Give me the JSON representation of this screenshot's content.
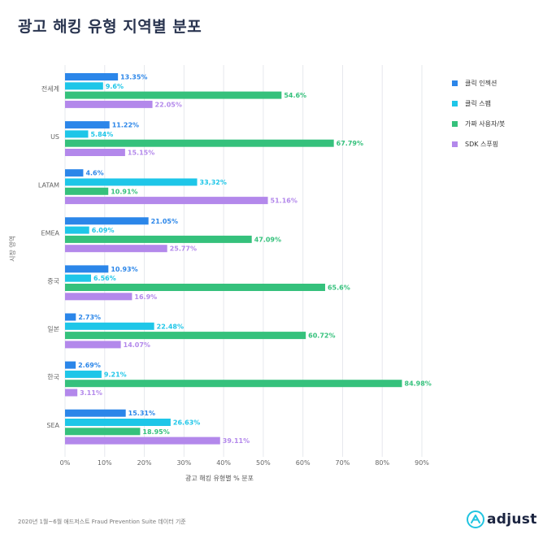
{
  "title": "광고 해킹 유형 지역별 분포",
  "footer": "2020년 1월~6월 애드저스트 Fraud Prevention Suite 데이터 기준",
  "logo_text": "adjust",
  "chart_data": {
    "type": "bar",
    "orientation": "horizontal",
    "title": "광고 해킹 유형 지역별 분포",
    "xlabel": "광고 해킹 유형별 % 분포",
    "ylabel": "시장 영역",
    "xlim": [
      0,
      90
    ],
    "xticks": [
      "0%",
      "10%",
      "20%",
      "30%",
      "40%",
      "50%",
      "60%",
      "70%",
      "80%",
      "90%"
    ],
    "grid": true,
    "legend_position": "right",
    "categories": [
      "전세계",
      "US",
      "LATAM",
      "EMEA",
      "중국",
      "일본",
      "한국",
      "SEA"
    ],
    "series": [
      {
        "name": "클릭 인젝션",
        "color": "#2b86e9",
        "values": [
          13.35,
          11.22,
          4.6,
          21.05,
          10.93,
          2.73,
          2.69,
          15.31
        ],
        "labels": [
          "13.35%",
          "11.22%",
          "4.6%",
          "21.05%",
          "10.93%",
          "2.73%",
          "2.69%",
          "15.31%"
        ]
      },
      {
        "name": "클릭 스팸",
        "color": "#1ec6e8",
        "values": [
          9.6,
          5.84,
          33.32,
          6.09,
          6.56,
          22.48,
          9.21,
          26.63
        ],
        "labels": [
          "9.6%",
          "5.84%",
          "33,32%",
          "6.09%",
          "6.56%",
          "22.48%",
          "9.21%",
          "26.63%"
        ]
      },
      {
        "name": "가짜 사용자/봇",
        "color": "#35c17c",
        "values": [
          54.6,
          67.79,
          10.91,
          47.09,
          65.6,
          60.72,
          84.98,
          18.95
        ],
        "labels": [
          "54.6%",
          "67.79%",
          "10.91%",
          "47.09%",
          "65.6%",
          "60.72%",
          "84.98%",
          "18.95%"
        ]
      },
      {
        "name": "SDK 스푸핑",
        "color": "#b388eb",
        "values": [
          22.05,
          15.15,
          51.16,
          25.77,
          16.9,
          14.07,
          3.11,
          39.11
        ],
        "labels": [
          "22.05%",
          "15.15%",
          "51.16%",
          "25.77%",
          "16.9%",
          "14.07%",
          "3.11%",
          "39.11%"
        ]
      }
    ]
  }
}
